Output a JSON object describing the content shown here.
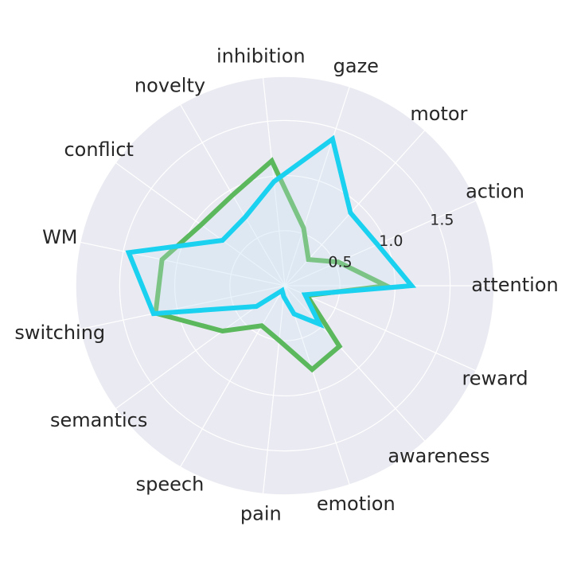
{
  "chart_data": {
    "type": "radar",
    "categories": [
      "attention",
      "action",
      "motor",
      "gaze",
      "inhibition",
      "novelty",
      "conflict",
      "WM",
      "switching",
      "semantics",
      "speech",
      "pain",
      "emotion",
      "awareness",
      "reward"
    ],
    "r_ticks": [
      "0.5",
      "1.0",
      "1.5"
    ],
    "r_tick_values": [
      0.5,
      1.0,
      1.5
    ],
    "rlim": [
      0,
      1.9
    ],
    "grid": true,
    "background_color": "#EAEAF2",
    "series": [
      {
        "color": "#5CB85C",
        "values": [
          0.92,
          0.53,
          0.32,
          0.55,
          1.14,
          0.95,
          0.94,
          1.14,
          1.2,
          0.7,
          0.42,
          0.5,
          0.8,
          0.74,
          0.22
        ]
      },
      {
        "color": "#1AD1F0",
        "values": [
          1.15,
          0.92,
          0.89,
          1.4,
          0.95,
          0.72,
          0.7,
          1.45,
          1.22,
          0.32,
          0.05,
          0.1,
          0.27,
          0.47,
          0.2
        ]
      }
    ]
  }
}
